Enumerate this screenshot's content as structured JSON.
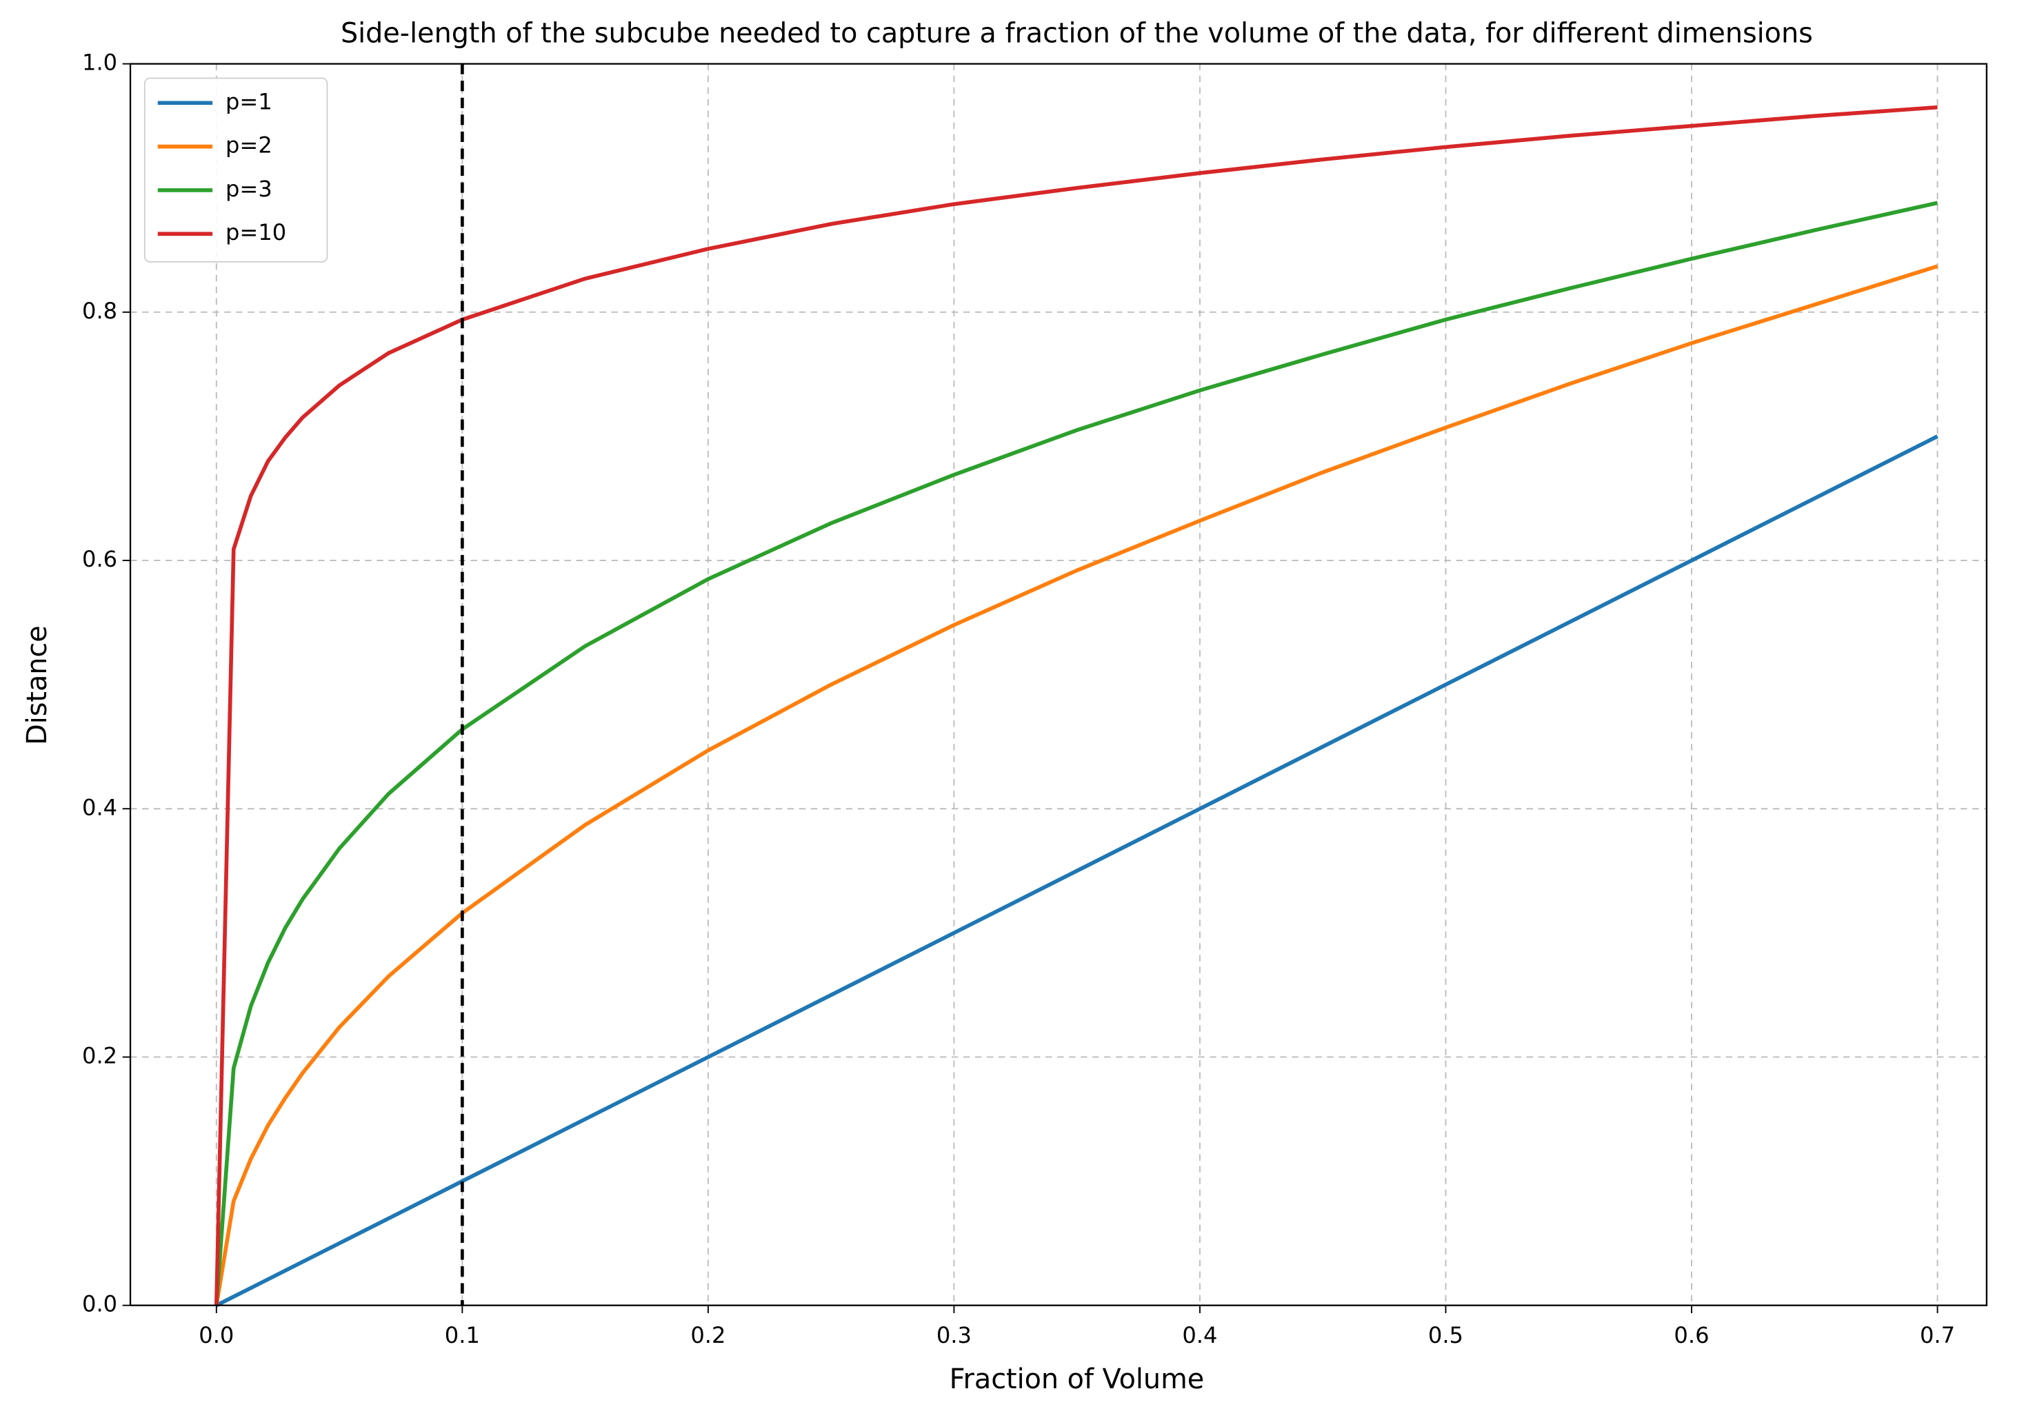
{
  "chart_data": {
    "type": "line",
    "title": "Side-length of the subcube needed to capture a fraction of the volume of the data, for different dimensions",
    "x_label": "Fraction of Volume",
    "y_label": "Distance",
    "x": [
      0,
      0.007,
      0.014,
      0.021,
      0.028,
      0.035,
      0.05,
      0.07,
      0.1,
      0.15,
      0.2,
      0.25,
      0.3,
      0.35,
      0.4,
      0.45,
      0.5,
      0.55,
      0.6,
      0.65,
      0.7
    ],
    "series": [
      {
        "name": "p=1",
        "color": "#1f77b4",
        "values": [
          0,
          0.007,
          0.014,
          0.021,
          0.028,
          0.035,
          0.05,
          0.07,
          0.1,
          0.15,
          0.2,
          0.25,
          0.3,
          0.35,
          0.4,
          0.45,
          0.5,
          0.55,
          0.6,
          0.65,
          0.7
        ]
      },
      {
        "name": "p=2",
        "color": "#ff7f0e",
        "values": [
          0,
          0.084,
          0.118,
          0.145,
          0.167,
          0.187,
          0.224,
          0.265,
          0.316,
          0.387,
          0.447,
          0.5,
          0.548,
          0.592,
          0.632,
          0.671,
          0.707,
          0.742,
          0.775,
          0.806,
          0.837
        ]
      },
      {
        "name": "p=3",
        "color": "#2ca02c",
        "values": [
          0,
          0.191,
          0.241,
          0.276,
          0.304,
          0.327,
          0.368,
          0.412,
          0.464,
          0.531,
          0.585,
          0.63,
          0.669,
          0.705,
          0.737,
          0.766,
          0.794,
          0.819,
          0.843,
          0.866,
          0.888
        ]
      },
      {
        "name": "p=10",
        "color": "#d62728",
        "values": [
          0,
          0.609,
          0.652,
          0.68,
          0.699,
          0.715,
          0.741,
          0.767,
          0.794,
          0.827,
          0.851,
          0.871,
          0.887,
          0.9,
          0.912,
          0.923,
          0.933,
          0.942,
          0.95,
          0.958,
          0.965
        ]
      }
    ],
    "reference_line": {
      "x": 0.1,
      "color": "#000000"
    },
    "xlim": [
      -0.035,
      0.72
    ],
    "ylim": [
      0,
      1
    ],
    "xticks": [
      {
        "value": 0,
        "label": "0.0"
      },
      0.1,
      0.2,
      0.3,
      0.4,
      0.5,
      0.6,
      0.7
    ],
    "yticks": [
      {
        "value": 0,
        "label": "0.0"
      },
      0.2,
      0.4,
      0.6,
      0.8,
      {
        "value": 1,
        "label": "1.0"
      }
    ],
    "grid": true,
    "legend": "upper left"
  }
}
